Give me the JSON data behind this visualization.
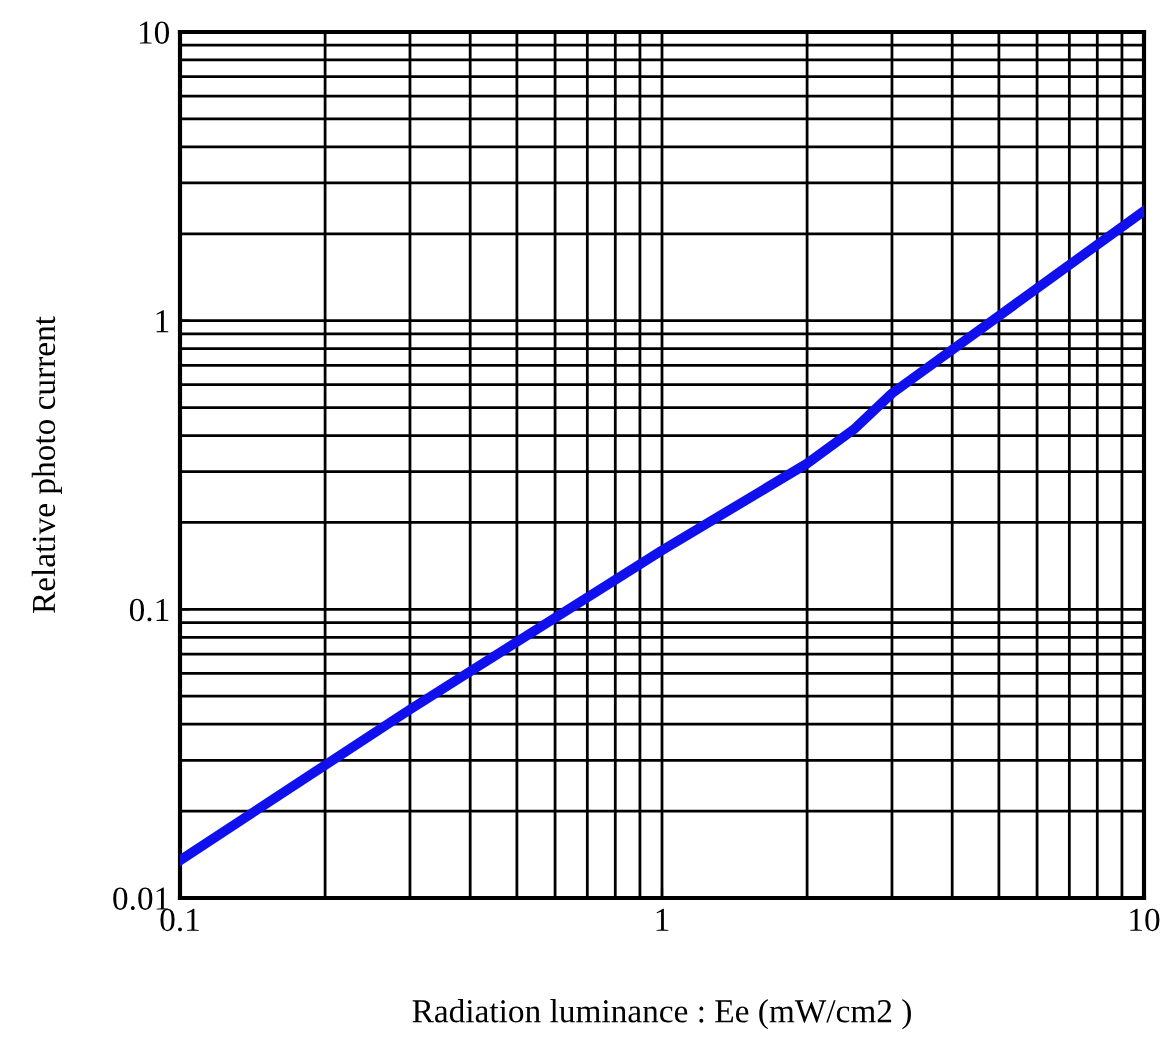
{
  "chart_data": {
    "type": "line",
    "xlabel": "Radiation luminance : Ee (mW/cm2 )",
    "ylabel": "Relative photo current",
    "log": "xy",
    "xlim": [
      0.1,
      10
    ],
    "ylim": [
      0.01,
      10
    ],
    "xticks": [
      0.1,
      1,
      10
    ],
    "yticks": [
      0.01,
      0.1,
      1,
      10
    ],
    "grid": true,
    "marker": "none",
    "line_style": "solid",
    "series": [
      {
        "color": "#1010ee",
        "x": [
          0.1,
          0.3,
          1,
          2,
          2.5,
          3,
          10
        ],
        "values": [
          0.0135,
          0.045,
          0.16,
          0.32,
          0.42,
          0.56,
          2.4
        ]
      }
    ]
  }
}
